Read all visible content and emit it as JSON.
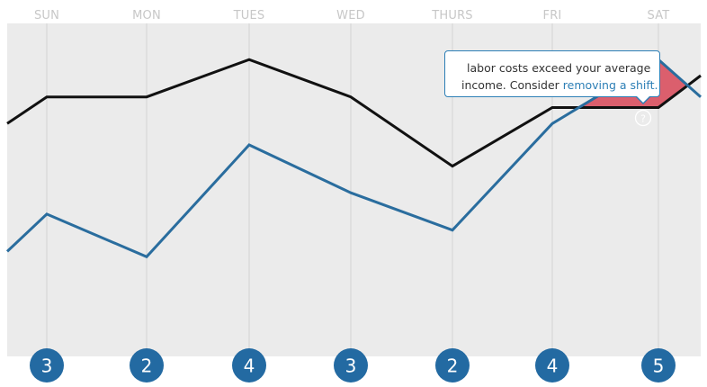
{
  "chart_data": {
    "type": "line",
    "categories": [
      "SUN",
      "MON",
      "TUES",
      "WED",
      "THURS",
      "FRI",
      "SAT"
    ],
    "series": [
      {
        "name": "",
        "color": "#111111",
        "values": [
          4.6,
          4.6,
          5.3,
          4.6,
          3.3,
          4.4,
          4.4
        ],
        "edge_start": 4.1,
        "edge_end": 5.0
      },
      {
        "name": "",
        "color": "#2a6d9e",
        "values": [
          2.4,
          1.6,
          3.7,
          2.8,
          2.1,
          4.1,
          5.3
        ],
        "edge_start": 1.7,
        "edge_end": 4.6
      }
    ],
    "ylim": [
      0,
      7
    ],
    "grid": true,
    "highlight": {
      "color": "#d9505f",
      "description": "area where blue line exceeds black line"
    },
    "counts": [
      "3",
      "2",
      "4",
      "3",
      "2",
      "4",
      "5"
    ]
  },
  "tooltip": {
    "line1": "labor costs exceed your average",
    "line2_text": "income. Consider ",
    "link_text": "removing a shift.",
    "icon": "question-icon",
    "icon_glyph": "?"
  },
  "colors": {
    "plot_bg": "#ebebeb",
    "badge": "#236aa2",
    "gridline": "#d3d3d3"
  }
}
